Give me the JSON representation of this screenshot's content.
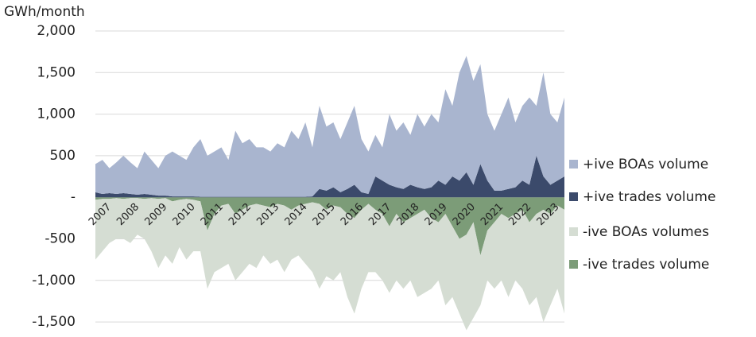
{
  "chart_data": {
    "type": "area",
    "stacked": true,
    "grid": true,
    "ylabel": "GWh/month",
    "ylim": [
      -1700,
      2000
    ],
    "yticks": [
      {
        "value": -1500,
        "label": "-1,500"
      },
      {
        "value": -1000,
        "label": "-1,000"
      },
      -500,
      {
        "value": 0,
        "label": "-"
      },
      500,
      {
        "value": 1000,
        "label": "1,000"
      },
      {
        "value": 1500,
        "label": "1,500"
      },
      {
        "value": 2000,
        "label": "2,000"
      }
    ],
    "categories": [
      "2007",
      null,
      null,
      null,
      "2008",
      null,
      null,
      null,
      "2009",
      null,
      null,
      null,
      "2010",
      null,
      null,
      null,
      "2011",
      null,
      null,
      null,
      "2012",
      null,
      null,
      null,
      "2013",
      null,
      null,
      null,
      "2014",
      null,
      null,
      null,
      "2015",
      null,
      null,
      null,
      "2016",
      null,
      null,
      null,
      "2017",
      null,
      null,
      null,
      "2018",
      null,
      null,
      null,
      "2019",
      null,
      null,
      null,
      "2020",
      null,
      null,
      null,
      "2021",
      null,
      null,
      null,
      "2022",
      null,
      null,
      null,
      "2023",
      null,
      null,
      null
    ],
    "series": [
      {
        "name": "+ive BOAs volume",
        "color": "#a9b5cf",
        "values": [
          340,
          410,
          300,
          380,
          450,
          380,
          320,
          510,
          420,
          330,
          480,
          540,
          490,
          440,
          590,
          695,
          495,
          545,
          595,
          445,
          795,
          645,
          695,
          595,
          595,
          545,
          645,
          595,
          795,
          695,
          895,
          590,
          1000,
          770,
          780,
          640,
          800,
          950,
          640,
          510,
          500,
          400,
          850,
          680,
          800,
          600,
          880,
          750,
          880,
          700,
          1150,
          850,
          1300,
          1400,
          1250,
          1200,
          800,
          720,
          920,
          1100,
          780,
          900,
          1050,
          600,
          1250,
          850,
          700,
          950
        ]
      },
      {
        "name": "+ive trades volume",
        "color": "#3b4a6b",
        "values": [
          60,
          40,
          50,
          40,
          50,
          40,
          30,
          40,
          30,
          20,
          20,
          10,
          10,
          10,
          10,
          5,
          5,
          5,
          5,
          5,
          5,
          5,
          5,
          5,
          5,
          5,
          5,
          5,
          5,
          5,
          5,
          10,
          100,
          80,
          120,
          60,
          100,
          150,
          60,
          40,
          250,
          200,
          150,
          120,
          100,
          150,
          120,
          100,
          120,
          200,
          150,
          250,
          200,
          300,
          150,
          400,
          200,
          80,
          80,
          100,
          120,
          200,
          150,
          500,
          250,
          150,
          200,
          250
        ]
      },
      {
        "name": "-ive BOAs volumes",
        "color": "#d5ddd3",
        "values": [
          -720,
          -630,
          -530,
          -490,
          -480,
          -540,
          -440,
          -480,
          -640,
          -830,
          -690,
          -750,
          -570,
          -730,
          -620,
          -600,
          -700,
          -700,
          -750,
          -720,
          -800,
          -750,
          -700,
          -770,
          -600,
          -680,
          -670,
          -800,
          -600,
          -600,
          -720,
          -840,
          -1020,
          -800,
          -900,
          -780,
          -1000,
          -1150,
          -950,
          -820,
          -750,
          -800,
          -800,
          -800,
          -800,
          -750,
          -1000,
          -1000,
          -850,
          -700,
          -1100,
          -850,
          -900,
          -1150,
          -1150,
          -600,
          -600,
          -800,
          -800,
          -950,
          -800,
          -950,
          -1000,
          -1000,
          -1350,
          -1100,
          -1000,
          -1250
        ]
      },
      {
        "name": "-ive trades volume",
        "color": "#7c9c78",
        "values": [
          -30,
          -20,
          -20,
          -10,
          -20,
          -10,
          -10,
          -20,
          -10,
          -20,
          -10,
          -50,
          -30,
          -20,
          -30,
          -50,
          -400,
          -200,
          -100,
          -80,
          -200,
          -150,
          -100,
          -80,
          -100,
          -120,
          -80,
          -100,
          -150,
          -100,
          -80,
          -60,
          -80,
          -150,
          -100,
          -120,
          -200,
          -250,
          -150,
          -80,
          -150,
          -200,
          -350,
          -200,
          -300,
          -250,
          -200,
          -150,
          -250,
          -300,
          -200,
          -350,
          -500,
          -450,
          -300,
          -700,
          -400,
          -300,
          -200,
          -250,
          -200,
          -150,
          -300,
          -200,
          -150,
          -200,
          -100,
          -150
        ]
      }
    ]
  }
}
